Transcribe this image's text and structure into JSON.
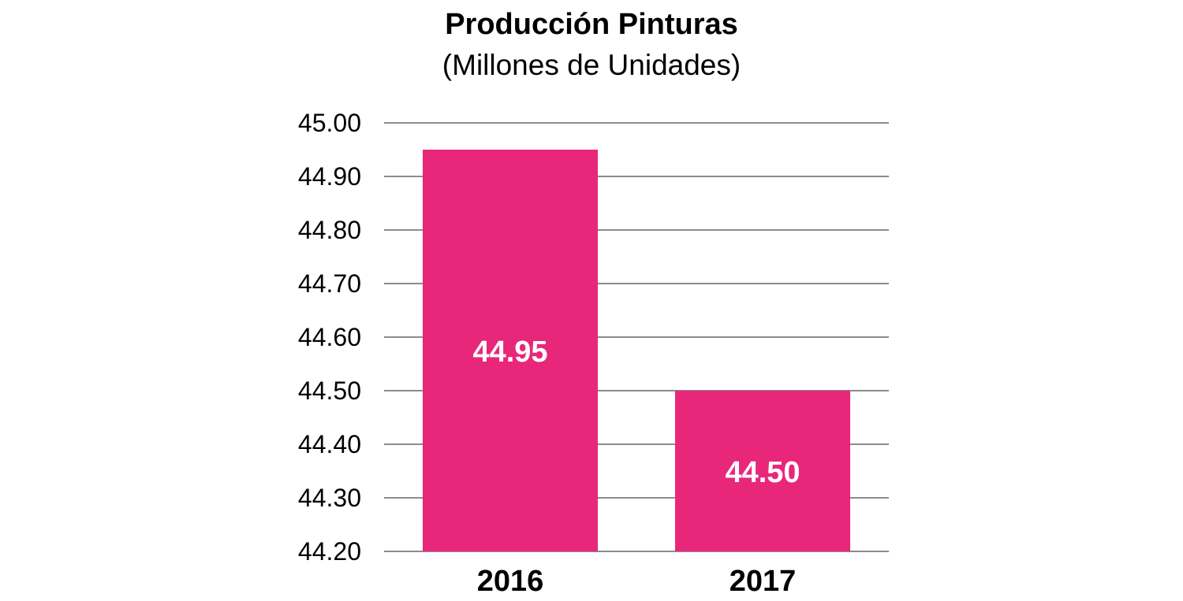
{
  "chart_data": {
    "type": "bar",
    "title": "Producción Pinturas",
    "subtitle": "(Millones de Unidades)",
    "categories": [
      "2016",
      "2017"
    ],
    "values": [
      44.95,
      44.5
    ],
    "data_labels": [
      "44.95",
      "44.50"
    ],
    "ylim": [
      44.2,
      45.0
    ],
    "yticks": [
      "44.20",
      "44.30",
      "44.40",
      "44.50",
      "44.60",
      "44.70",
      "44.80",
      "44.90",
      "45.00"
    ],
    "grid": true,
    "bar_color": "#E8277A",
    "grid_color": "#8C8C8C"
  }
}
